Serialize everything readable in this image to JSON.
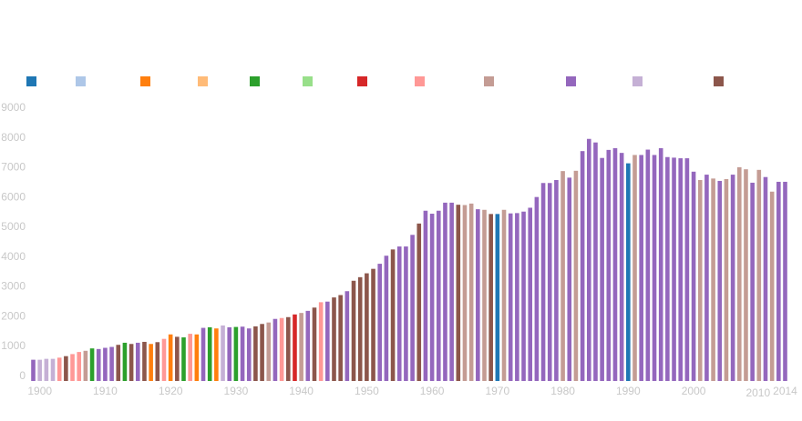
{
  "chart_data": {
    "type": "bar",
    "title": "",
    "xlabel": "",
    "ylabel": "",
    "ylim": [
      0,
      9000
    ],
    "grid": false,
    "legend_position": "top",
    "y_ticks": [
      "0",
      "1000",
      "2000",
      "3000",
      "4000",
      "5000",
      "6000",
      "7000",
      "8000",
      "9000"
    ],
    "x_ticks": [
      "1900",
      "1910",
      "1920",
      "1930",
      "1940",
      "1950",
      "1960",
      "1970",
      "1980",
      "1990",
      "2000",
      "2010",
      "2014"
    ],
    "legend": [
      {
        "name": "",
        "color": "#1f77b4"
      },
      {
        "name": "",
        "color": "#aec7e8"
      },
      {
        "name": "",
        "color": "#ff7f0e"
      },
      {
        "name": "",
        "color": "#ffbb78"
      },
      {
        "name": "",
        "color": "#2ca02c"
      },
      {
        "name": "",
        "color": "#98df8a"
      },
      {
        "name": "",
        "color": "#d62728"
      },
      {
        "name": "",
        "color": "#ff9896"
      },
      {
        "name": "",
        "color": "#c49c94"
      },
      {
        "name": "",
        "color": "#9467bd"
      },
      {
        "name": "",
        "color": "#c5b0d5"
      },
      {
        "name": "",
        "color": "#8c564b"
      }
    ],
    "x_start": 1899,
    "x_end": 2014,
    "values": [
      530,
      530,
      560,
      560,
      600,
      650,
      720,
      790,
      830,
      910,
      890,
      930,
      960,
      1030,
      1100,
      1060,
      1100,
      1130,
      1060,
      1120,
      1230,
      1380,
      1300,
      1280,
      1400,
      1380,
      1600,
      1620,
      1580,
      1680,
      1620,
      1630,
      1640,
      1580,
      1650,
      1730,
      1780,
      1900,
      1930,
      1960,
      2050,
      2100,
      2170,
      2280,
      2460,
      2480,
      2620,
      2700,
      2830,
      3180,
      3300,
      3430,
      3580,
      3750,
      4020,
      4230,
      4330,
      4330,
      4720,
      5100,
      5530,
      5430,
      5530,
      5800,
      5800,
      5730,
      5720,
      5770,
      5580,
      5560,
      5420,
      5420,
      5560,
      5440,
      5450,
      5500,
      5630,
      5990,
      6460,
      6460,
      6560,
      6860,
      6640,
      6870,
      7530,
      7940,
      7820,
      7300,
      7570,
      7630,
      7470,
      7120,
      7400,
      7400,
      7580,
      7400,
      7630,
      7330,
      7310,
      7290,
      7290,
      6840,
      6560,
      6740,
      6610,
      6530,
      6590,
      6740,
      6990,
      6920,
      6470,
      6900,
      6660,
      6170,
      6500,
      6500
    ],
    "bar_colors": [
      "#9467bd",
      "#c5b0d5",
      "#c5b0d5",
      "#c5b0d5",
      "#ff9896",
      "#8c564b",
      "#ff9896",
      "#ff9896",
      "#c49c94",
      "#2ca02c",
      "#9467bd",
      "#9467bd",
      "#9467bd",
      "#8c564b",
      "#2ca02c",
      "#8c564b",
      "#9467bd",
      "#8c564b",
      "#ff7f0e",
      "#8c564b",
      "#ff9896",
      "#ff7f0e",
      "#8c564b",
      "#2ca02c",
      "#ff9896",
      "#ff7f0e",
      "#9467bd",
      "#2ca02c",
      "#ff7f0e",
      "#c5b0d5",
      "#9467bd",
      "#2ca02c",
      "#9467bd",
      "#9467bd",
      "#8c564b",
      "#8c564b",
      "#c49c94",
      "#9467bd",
      "#ff9896",
      "#8c564b",
      "#d62728",
      "#c49c94",
      "#9467bd",
      "#8c564b",
      "#ff9896",
      "#9467bd",
      "#8c564b",
      "#8c564b",
      "#9467bd",
      "#8c564b",
      "#8c564b",
      "#8c564b",
      "#8c564b",
      "#9467bd",
      "#9467bd",
      "#8c564b",
      "#9467bd",
      "#9467bd",
      "#9467bd",
      "#8c564b",
      "#9467bd",
      "#9467bd",
      "#9467bd",
      "#9467bd",
      "#9467bd",
      "#8c564b",
      "#c49c94",
      "#c49c94",
      "#9467bd",
      "#c49c94",
      "#8c564b",
      "#1f77b4",
      "#c49c94",
      "#9467bd",
      "#9467bd",
      "#9467bd",
      "#9467bd",
      "#9467bd",
      "#9467bd",
      "#9467bd",
      "#9467bd",
      "#c49c94",
      "#9467bd",
      "#c49c94",
      "#9467bd",
      "#9467bd",
      "#9467bd",
      "#9467bd",
      "#9467bd",
      "#9467bd",
      "#9467bd",
      "#1f77b4",
      "#c49c94",
      "#9467bd",
      "#9467bd",
      "#9467bd",
      "#9467bd",
      "#9467bd",
      "#9467bd",
      "#9467bd",
      "#9467bd",
      "#9467bd",
      "#c49c94",
      "#9467bd",
      "#c49c94",
      "#9467bd",
      "#c49c94",
      "#9467bd",
      "#c49c94",
      "#c49c94",
      "#9467bd",
      "#c49c94",
      "#9467bd",
      "#c49c94",
      "#9467bd",
      "#9467bd"
    ]
  }
}
